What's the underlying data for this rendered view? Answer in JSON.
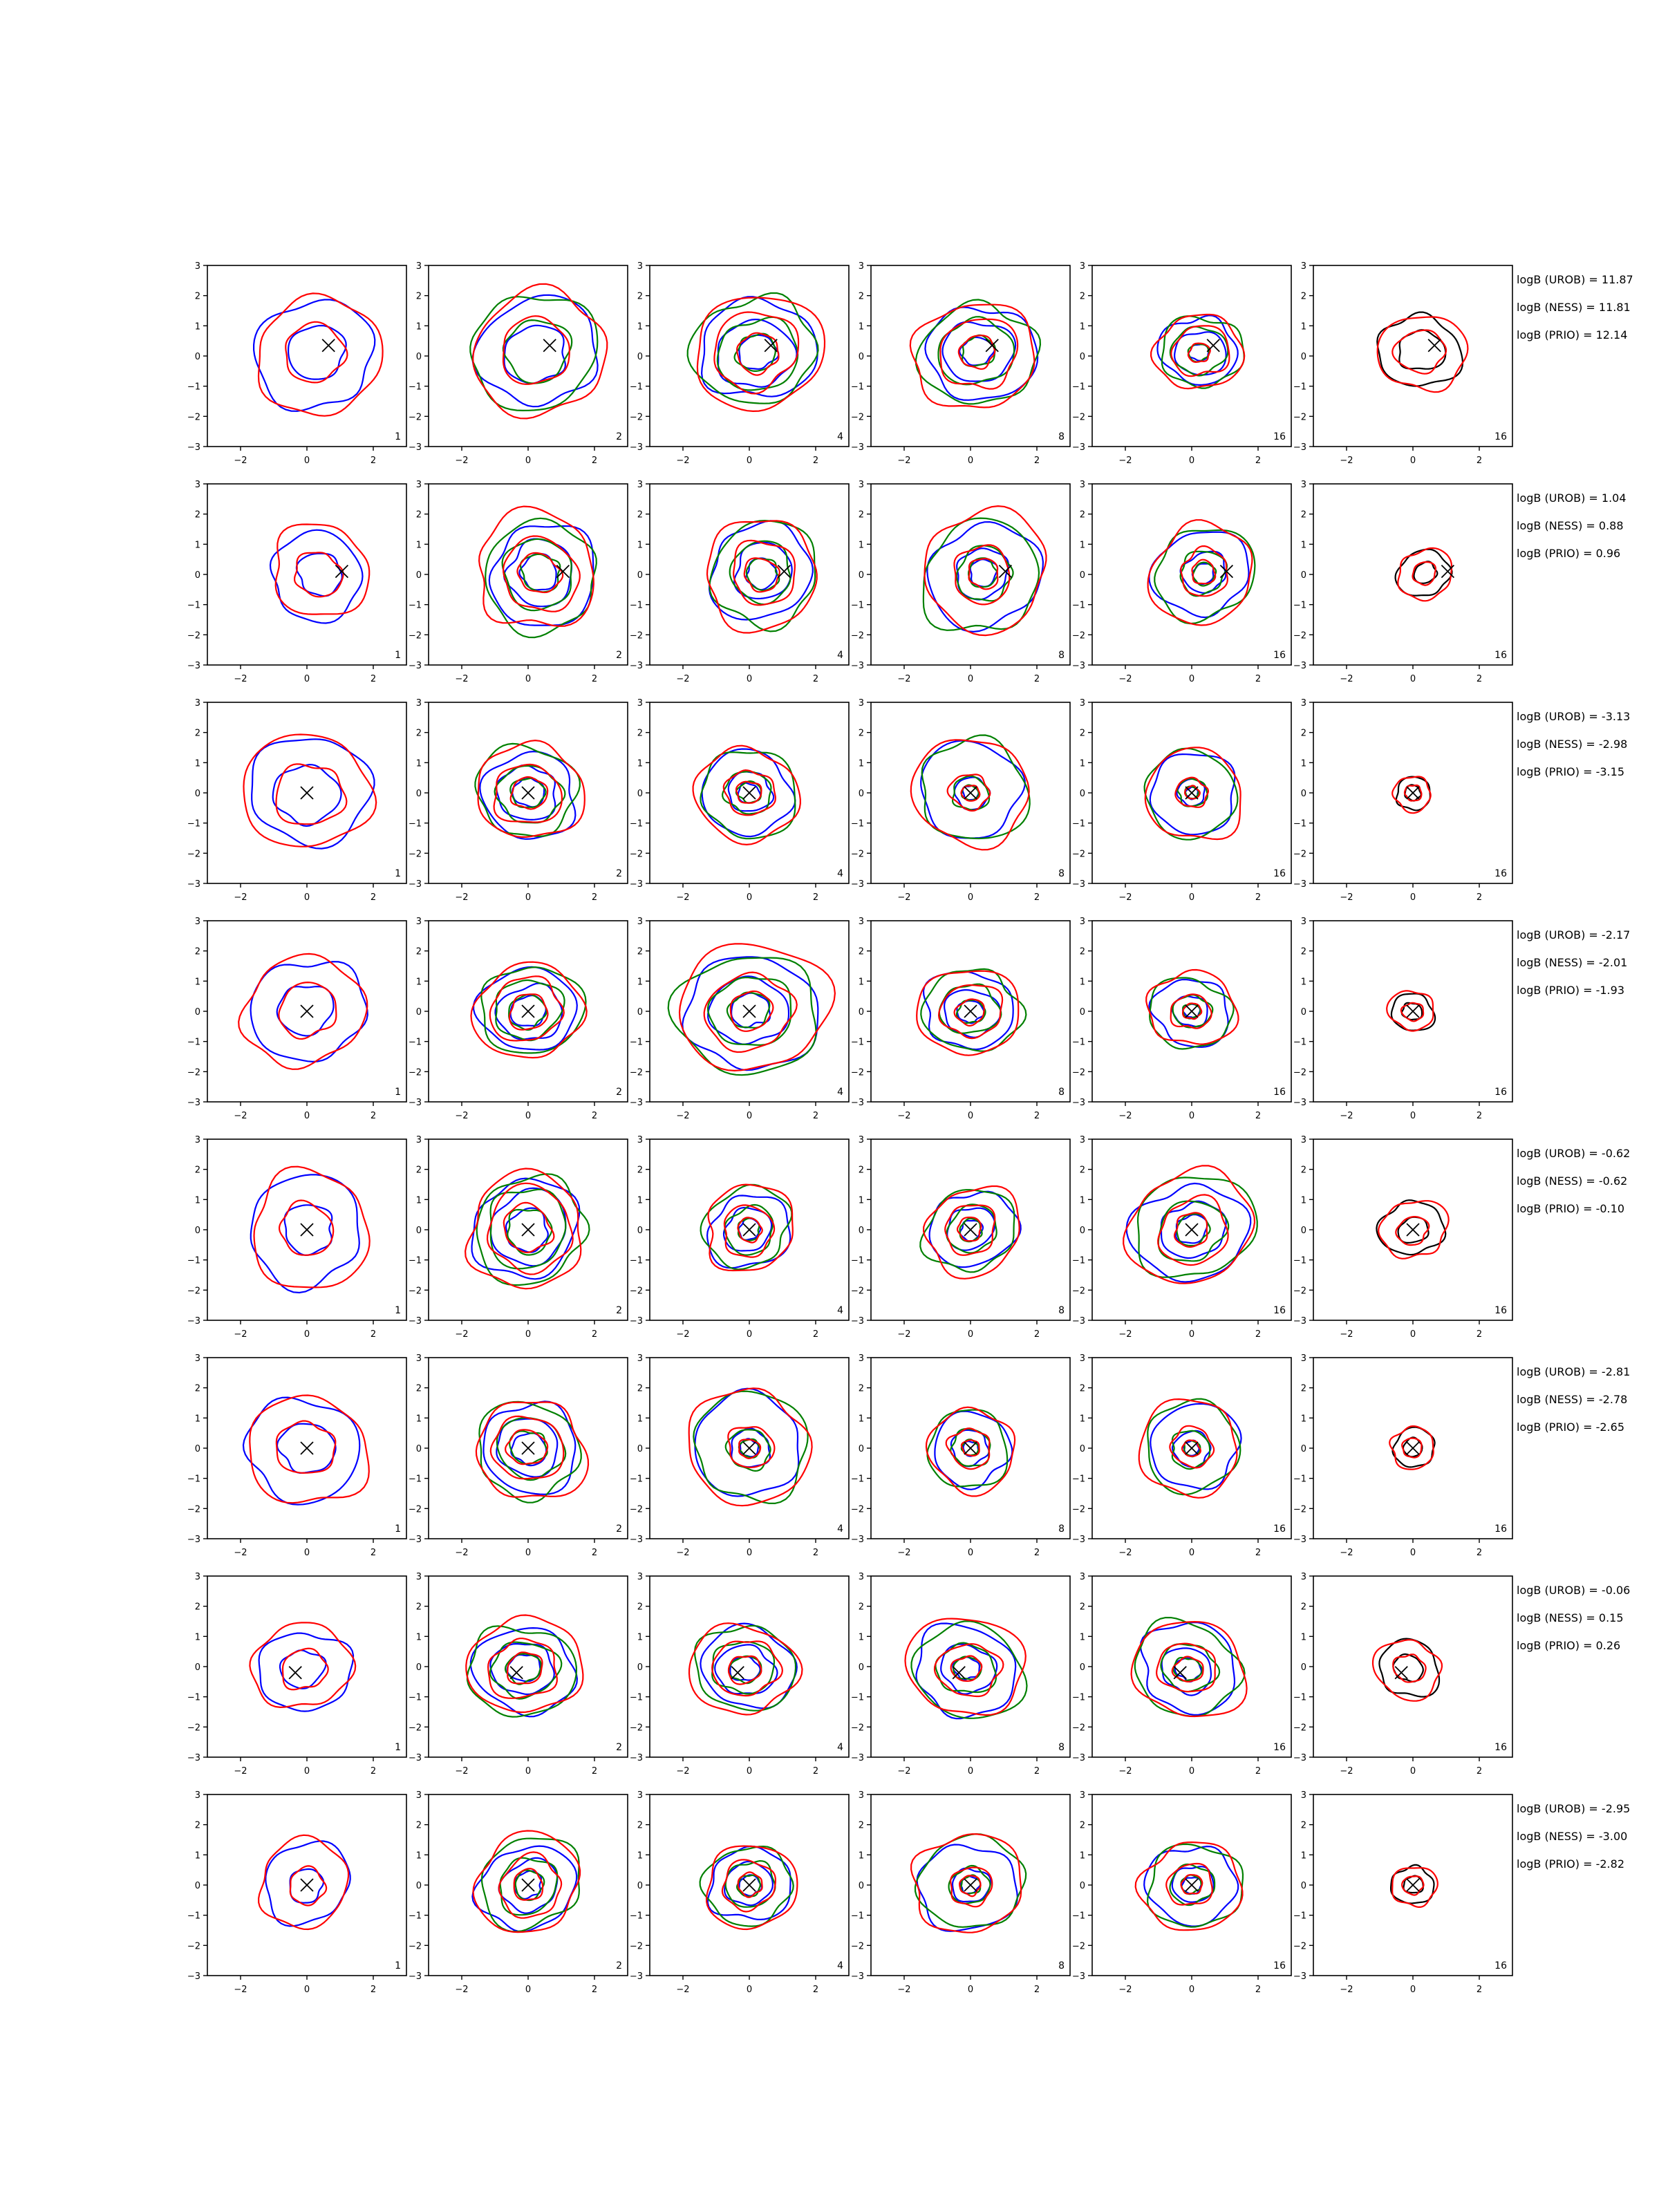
{
  "figure": {
    "rows": 8,
    "cols": 6,
    "colors": {
      "blue": "#0000ff",
      "green": "#008000",
      "red": "#ff0000",
      "black": "#000000",
      "frame": "#000000"
    }
  },
  "chart_data": {
    "type": "contour-grid",
    "axes": {
      "xlim": [
        -3,
        3
      ],
      "ylim": [
        -3,
        3
      ],
      "xticks": [
        -2,
        0,
        2
      ],
      "yticks": [
        3,
        2,
        1,
        0,
        -1,
        -2,
        -3
      ],
      "xtick_labels": [
        "−2",
        "0",
        "2"
      ],
      "ytick_labels": [
        "3",
        "2",
        "1",
        "0",
        "−1",
        "−2",
        "−3"
      ],
      "grid": false
    },
    "column_labels": [
      "1",
      "2",
      "4",
      "8",
      "16",
      "16"
    ],
    "column_series": [
      [
        "blue",
        "red"
      ],
      [
        "blue",
        "green",
        "red"
      ],
      [
        "blue",
        "green",
        "red"
      ],
      [
        "blue",
        "green",
        "red"
      ],
      [
        "blue",
        "green",
        "red"
      ],
      [
        "black",
        "red"
      ]
    ],
    "rows": [
      {
        "marker": [
          0.65,
          0.35
        ],
        "stats": [
          "logB (UROB) = 11.87",
          "logB (NESS) = 11.81",
          "logB (PRIO) = 12.14"
        ],
        "contour_radii": [
          [
            0.9,
            1.85
          ],
          [
            1.0,
            1.9
          ],
          [
            0.6,
            1.2,
            1.8
          ],
          [
            0.5,
            1.1,
            1.7
          ],
          [
            0.3,
            0.8,
            1.2
          ],
          [
            0.7,
            1.25
          ]
        ]
      },
      {
        "marker": [
          1.05,
          0.1
        ],
        "stats": [
          "logB (UROB) = 1.04",
          "logB (NESS) = 0.88",
          "logB (PRIO) = 0.96"
        ],
        "contour_radii": [
          [
            0.7,
            1.45
          ],
          [
            0.6,
            1.1,
            1.75
          ],
          [
            0.5,
            0.95,
            1.65
          ],
          [
            0.45,
            0.85,
            1.8
          ],
          [
            0.35,
            0.7,
            1.5
          ],
          [
            0.35,
            0.8
          ]
        ]
      },
      {
        "marker": [
          0.0,
          0.0
        ],
        "stats": [
          "logB (UROB) = -3.13",
          "logB (NESS) = -2.98",
          "logB (PRIO) = -3.15"
        ],
        "contour_radii": [
          [
            1.0,
            1.85
          ],
          [
            0.5,
            0.95,
            1.5
          ],
          [
            0.35,
            0.7,
            1.45
          ],
          [
            0.25,
            0.55,
            1.65
          ],
          [
            0.2,
            0.45,
            1.4
          ],
          [
            0.25,
            0.55
          ]
        ]
      },
      {
        "marker": [
          0.0,
          0.0
        ],
        "stats": [
          "logB (UROB) = -2.17",
          "logB (NESS) = -2.01",
          "logB (PRIO) = -1.93"
        ],
        "contour_radii": [
          [
            0.85,
            1.75
          ],
          [
            0.55,
            1.0,
            1.5
          ],
          [
            0.6,
            1.2,
            2.05
          ],
          [
            0.4,
            0.85,
            1.4
          ],
          [
            0.25,
            0.55,
            1.2
          ],
          [
            0.3,
            0.65
          ]
        ]
      },
      {
        "marker": [
          0.0,
          0.0
        ],
        "stats": [
          "logB (UROB) = -0.62",
          "logB (NESS) = -0.62",
          "logB (PRIO) = -0.10"
        ],
        "contour_radii": [
          [
            0.8,
            1.8
          ],
          [
            0.7,
            1.25,
            1.7
          ],
          [
            0.35,
            0.75,
            1.3
          ],
          [
            0.35,
            0.75,
            1.35
          ],
          [
            0.5,
            1.0,
            1.75
          ],
          [
            0.45,
            0.95
          ]
        ]
      },
      {
        "marker": [
          0.0,
          0.0
        ],
        "stats": [
          "logB (UROB) = -2.81",
          "logB (NESS) = -2.78",
          "logB (PRIO) = -2.65"
        ],
        "contour_radii": [
          [
            0.85,
            1.75
          ],
          [
            0.55,
            1.0,
            1.55
          ],
          [
            0.3,
            0.65,
            1.75
          ],
          [
            0.25,
            0.6,
            1.25
          ],
          [
            0.25,
            0.6,
            1.45
          ],
          [
            0.3,
            0.65
          ]
        ]
      },
      {
        "marker": [
          -0.35,
          -0.2
        ],
        "stats": [
          "logB (UROB) = -0.06",
          "logB (NESS) = 0.15",
          "logB (PRIO) = 0.26"
        ],
        "contour_radii": [
          [
            0.65,
            1.4
          ],
          [
            0.5,
            0.95,
            1.55
          ],
          [
            0.45,
            0.9,
            1.45
          ],
          [
            0.4,
            0.85,
            1.6
          ],
          [
            0.4,
            0.8,
            1.55
          ],
          [
            0.45,
            0.95
          ]
        ]
      },
      {
        "marker": [
          0.0,
          0.0
        ],
        "stats": [
          "logB (UROB) = -2.95",
          "logB (NESS) = -3.00",
          "logB (PRIO) = -2.82"
        ],
        "contour_radii": [
          [
            0.55,
            1.35
          ],
          [
            0.45,
            0.9,
            1.5
          ],
          [
            0.35,
            0.75,
            1.3
          ],
          [
            0.3,
            0.6,
            1.55
          ],
          [
            0.3,
            0.65,
            1.4
          ],
          [
            0.3,
            0.65
          ]
        ]
      }
    ]
  }
}
